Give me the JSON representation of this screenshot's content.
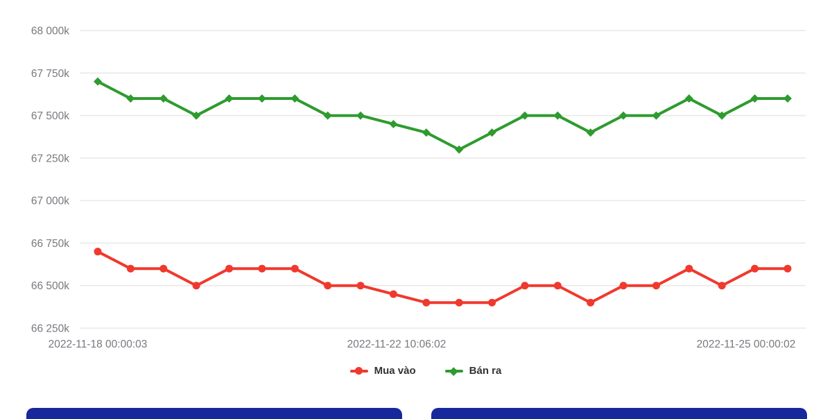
{
  "chart_data": {
    "type": "line",
    "title": "",
    "xlabel": "",
    "ylabel": "",
    "grid": "horizontal",
    "legend_position": "bottom",
    "ylim": [
      66250,
      68000
    ],
    "y_ticks": [
      68000,
      67750,
      67500,
      67250,
      67000,
      66750,
      66500,
      66250
    ],
    "y_tick_labels": [
      "68 000k",
      "67 750k",
      "67 500k",
      "67 250k",
      "67 000k",
      "66 750k",
      "66 500k",
      "66 250k"
    ],
    "x_tick_labels": [
      "2022-11-18 00:00:03",
      "2022-11-22 10:06:02",
      "2022-11-25 00:00:02"
    ],
    "point_count": 22,
    "series": [
      {
        "id": "mua-vao",
        "name": "Mua vào",
        "color": "#f0392d",
        "marker": "circle",
        "values": [
          66700,
          66600,
          66600,
          66500,
          66600,
          66600,
          66600,
          66500,
          66500,
          66450,
          66400,
          66400,
          66400,
          66500,
          66500,
          66400,
          66500,
          66500,
          66600,
          66500,
          66600,
          66600
        ]
      },
      {
        "id": "ban-ra",
        "name": "Bán ra",
        "color": "#2e9b2e",
        "marker": "diamond",
        "values": [
          67700,
          67600,
          67600,
          67500,
          67600,
          67600,
          67600,
          67500,
          67500,
          67450,
          67400,
          67300,
          67400,
          67500,
          67500,
          67400,
          67500,
          67500,
          67600,
          67500,
          67600,
          67600
        ]
      }
    ]
  },
  "colors": {
    "buy_line": "#f0392d",
    "sell_line": "#2e9b2e",
    "grid_line": "#e9e9e9",
    "axis_text": "#78787f",
    "legend_text": "#333333",
    "footer_card": "#16289c"
  }
}
